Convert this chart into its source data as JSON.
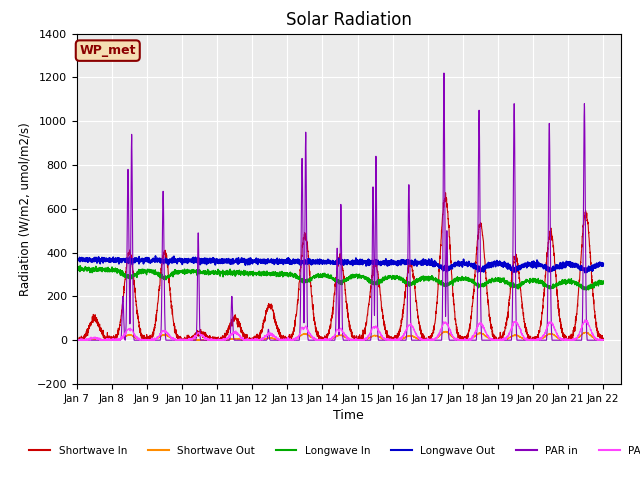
{
  "title": "Solar Radiation",
  "ylabel": "Radiation (W/m2, umol/m2/s)",
  "xlabel": "Time",
  "ylim": [
    -200,
    1400
  ],
  "xlim": [
    0,
    15.5
  ],
  "xtick_labels": [
    "Jan 7",
    "Jan 8",
    "Jan 9",
    "Jan 10",
    "Jan 11",
    "Jan 12",
    "Jan 13",
    "Jan 14",
    "Jan 15",
    "Jan 16",
    "Jan 17",
    "Jan 18",
    "Jan 19",
    "Jan 20",
    "Jan 21",
    "Jan 22"
  ],
  "annotation_text": "WP_met",
  "annotation_color": "#8B0000",
  "annotation_bg": "#F5DEB3",
  "bg_color": "#EBEBEB",
  "grid_color": "#FFFFFF",
  "colors": {
    "shortwave_in": "#CC0000",
    "shortwave_out": "#FF8C00",
    "longwave_in": "#00AA00",
    "longwave_out": "#0000CC",
    "par_in": "#8800BB",
    "par_out": "#FF44FF"
  },
  "legend_labels": [
    "Shortwave In",
    "Shortwave Out",
    "Longwave In",
    "Longwave Out",
    "PAR in",
    "PAR out"
  ]
}
